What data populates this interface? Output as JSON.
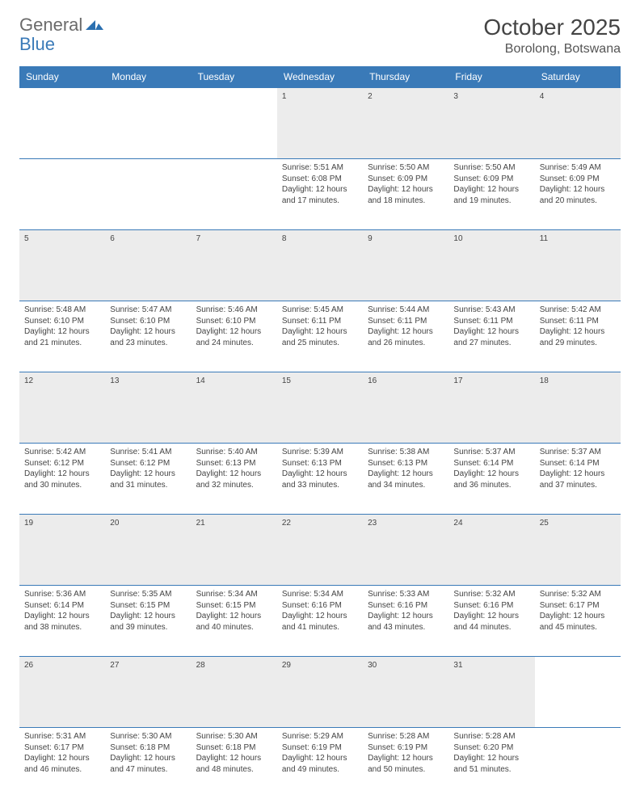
{
  "logo": {
    "general": "General",
    "blue": "Blue",
    "icon_color": "#2a6fb0"
  },
  "title": "October 2025",
  "location": "Borolong, Botswana",
  "colors": {
    "header_bg": "#3a7ab8",
    "header_text": "#ffffff",
    "daynum_bg": "#ececec",
    "border": "#3a7ab8",
    "text": "#444444"
  },
  "weekdays": [
    "Sunday",
    "Monday",
    "Tuesday",
    "Wednesday",
    "Thursday",
    "Friday",
    "Saturday"
  ],
  "weeks": [
    {
      "nums": [
        "",
        "",
        "",
        "1",
        "2",
        "3",
        "4"
      ],
      "details": [
        null,
        null,
        null,
        {
          "sunrise": "5:51 AM",
          "sunset": "6:08 PM",
          "daylight": "12 hours and 17 minutes."
        },
        {
          "sunrise": "5:50 AM",
          "sunset": "6:09 PM",
          "daylight": "12 hours and 18 minutes."
        },
        {
          "sunrise": "5:50 AM",
          "sunset": "6:09 PM",
          "daylight": "12 hours and 19 minutes."
        },
        {
          "sunrise": "5:49 AM",
          "sunset": "6:09 PM",
          "daylight": "12 hours and 20 minutes."
        }
      ]
    },
    {
      "nums": [
        "5",
        "6",
        "7",
        "8",
        "9",
        "10",
        "11"
      ],
      "details": [
        {
          "sunrise": "5:48 AM",
          "sunset": "6:10 PM",
          "daylight": "12 hours and 21 minutes."
        },
        {
          "sunrise": "5:47 AM",
          "sunset": "6:10 PM",
          "daylight": "12 hours and 23 minutes."
        },
        {
          "sunrise": "5:46 AM",
          "sunset": "6:10 PM",
          "daylight": "12 hours and 24 minutes."
        },
        {
          "sunrise": "5:45 AM",
          "sunset": "6:11 PM",
          "daylight": "12 hours and 25 minutes."
        },
        {
          "sunrise": "5:44 AM",
          "sunset": "6:11 PM",
          "daylight": "12 hours and 26 minutes."
        },
        {
          "sunrise": "5:43 AM",
          "sunset": "6:11 PM",
          "daylight": "12 hours and 27 minutes."
        },
        {
          "sunrise": "5:42 AM",
          "sunset": "6:11 PM",
          "daylight": "12 hours and 29 minutes."
        }
      ]
    },
    {
      "nums": [
        "12",
        "13",
        "14",
        "15",
        "16",
        "17",
        "18"
      ],
      "details": [
        {
          "sunrise": "5:42 AM",
          "sunset": "6:12 PM",
          "daylight": "12 hours and 30 minutes."
        },
        {
          "sunrise": "5:41 AM",
          "sunset": "6:12 PM",
          "daylight": "12 hours and 31 minutes."
        },
        {
          "sunrise": "5:40 AM",
          "sunset": "6:13 PM",
          "daylight": "12 hours and 32 minutes."
        },
        {
          "sunrise": "5:39 AM",
          "sunset": "6:13 PM",
          "daylight": "12 hours and 33 minutes."
        },
        {
          "sunrise": "5:38 AM",
          "sunset": "6:13 PM",
          "daylight": "12 hours and 34 minutes."
        },
        {
          "sunrise": "5:37 AM",
          "sunset": "6:14 PM",
          "daylight": "12 hours and 36 minutes."
        },
        {
          "sunrise": "5:37 AM",
          "sunset": "6:14 PM",
          "daylight": "12 hours and 37 minutes."
        }
      ]
    },
    {
      "nums": [
        "19",
        "20",
        "21",
        "22",
        "23",
        "24",
        "25"
      ],
      "details": [
        {
          "sunrise": "5:36 AM",
          "sunset": "6:14 PM",
          "daylight": "12 hours and 38 minutes."
        },
        {
          "sunrise": "5:35 AM",
          "sunset": "6:15 PM",
          "daylight": "12 hours and 39 minutes."
        },
        {
          "sunrise": "5:34 AM",
          "sunset": "6:15 PM",
          "daylight": "12 hours and 40 minutes."
        },
        {
          "sunrise": "5:34 AM",
          "sunset": "6:16 PM",
          "daylight": "12 hours and 41 minutes."
        },
        {
          "sunrise": "5:33 AM",
          "sunset": "6:16 PM",
          "daylight": "12 hours and 43 minutes."
        },
        {
          "sunrise": "5:32 AM",
          "sunset": "6:16 PM",
          "daylight": "12 hours and 44 minutes."
        },
        {
          "sunrise": "5:32 AM",
          "sunset": "6:17 PM",
          "daylight": "12 hours and 45 minutes."
        }
      ]
    },
    {
      "nums": [
        "26",
        "27",
        "28",
        "29",
        "30",
        "31",
        ""
      ],
      "details": [
        {
          "sunrise": "5:31 AM",
          "sunset": "6:17 PM",
          "daylight": "12 hours and 46 minutes."
        },
        {
          "sunrise": "5:30 AM",
          "sunset": "6:18 PM",
          "daylight": "12 hours and 47 minutes."
        },
        {
          "sunrise": "5:30 AM",
          "sunset": "6:18 PM",
          "daylight": "12 hours and 48 minutes."
        },
        {
          "sunrise": "5:29 AM",
          "sunset": "6:19 PM",
          "daylight": "12 hours and 49 minutes."
        },
        {
          "sunrise": "5:28 AM",
          "sunset": "6:19 PM",
          "daylight": "12 hours and 50 minutes."
        },
        {
          "sunrise": "5:28 AM",
          "sunset": "6:20 PM",
          "daylight": "12 hours and 51 minutes."
        },
        null
      ]
    }
  ],
  "labels": {
    "sunrise": "Sunrise:",
    "sunset": "Sunset:",
    "daylight": "Daylight:"
  }
}
